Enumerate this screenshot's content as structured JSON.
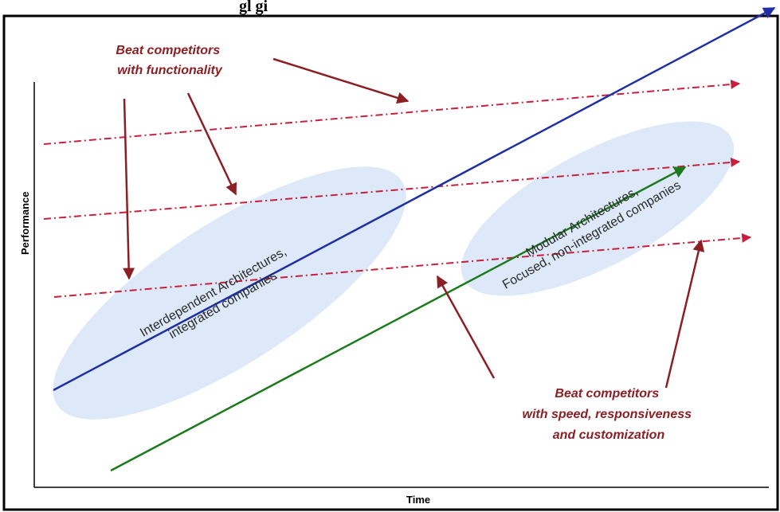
{
  "title_fragment": "gl      gi",
  "axes": {
    "y_label": "Performance",
    "x_label": "Time"
  },
  "annotations": {
    "top": [
      "Beat competitors",
      "with functionality"
    ],
    "bottom": [
      "Beat competitors",
      "with speed, responsiveness",
      "and customization"
    ]
  },
  "clouds": {
    "left": [
      "Interdependent Architectures,",
      "integrated companies"
    ],
    "right": [
      "Modular Architectures,",
      "Focused, non-integrated companies"
    ]
  },
  "colors": {
    "annotation": "#8b1f24",
    "dashed_trajectory": "#c8203c",
    "integrated_line": "#1f2fa6",
    "modular_line": "#1c7a1c",
    "cloud_fill": "#dde9f8"
  }
}
